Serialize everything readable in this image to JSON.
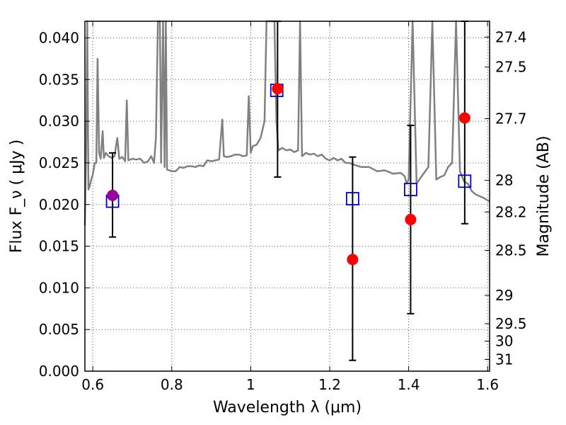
{
  "chart_data": {
    "type": "scatter",
    "xlabel": "Wavelength  λ (μm)",
    "ylabel": "Flux  F_ν  ( μJy )",
    "y2label": "Magnitude (AB)",
    "xlim": [
      0.58,
      1.605
    ],
    "ylim": [
      0.0,
      0.042
    ],
    "grid": true,
    "x_ticks": [
      {
        "value": 0.6,
        "label": "0.6"
      },
      {
        "value": 0.8,
        "label": "0.8"
      },
      {
        "value": 1.0,
        "label": "1"
      },
      {
        "value": 1.2,
        "label": "1.2"
      },
      {
        "value": 1.4,
        "label": "1.4"
      },
      {
        "value": 1.6,
        "label": "1.6"
      }
    ],
    "y_ticks": [
      {
        "value": 0.0,
        "label": "0.000"
      },
      {
        "value": 0.005,
        "label": "0.005"
      },
      {
        "value": 0.01,
        "label": "0.010"
      },
      {
        "value": 0.015,
        "label": "0.015"
      },
      {
        "value": 0.02,
        "label": "0.020"
      },
      {
        "value": 0.025,
        "label": "0.025"
      },
      {
        "value": 0.03,
        "label": "0.030"
      },
      {
        "value": 0.035,
        "label": "0.035"
      },
      {
        "value": 0.04,
        "label": "0.040"
      }
    ],
    "y2_ticks": [
      {
        "flux": 0.0401,
        "label": "27.4"
      },
      {
        "flux": 0.0365,
        "label": "27.5"
      },
      {
        "flux": 0.0303,
        "label": "27.7"
      },
      {
        "flux": 0.0229,
        "label": "28"
      },
      {
        "flux": 0.0191,
        "label": "28.2"
      },
      {
        "flux": 0.0145,
        "label": "28.5"
      },
      {
        "flux": 0.0091,
        "label": "29"
      },
      {
        "flux": 0.0057,
        "label": "29.5"
      },
      {
        "flux": 0.0036,
        "label": "30"
      },
      {
        "flux": 0.0014,
        "label": "31"
      }
    ],
    "series": [
      {
        "kind": "spectrum",
        "color": "#808080",
        "points": [
          [
            0.58,
            0.0175
          ],
          [
            0.583,
            0.026
          ],
          [
            0.586,
            0.042
          ],
          [
            0.589,
            0.0218
          ],
          [
            0.592,
            0.0222
          ],
          [
            0.596,
            0.023
          ],
          [
            0.6,
            0.0236
          ],
          [
            0.605,
            0.025
          ],
          [
            0.609,
            0.025
          ],
          [
            0.612,
            0.0375
          ],
          [
            0.616,
            0.0262
          ],
          [
            0.62,
            0.0255
          ],
          [
            0.625,
            0.0288
          ],
          [
            0.628,
            0.0256
          ],
          [
            0.633,
            0.0262
          ],
          [
            0.64,
            0.0258
          ],
          [
            0.648,
            0.0256
          ],
          [
            0.655,
            0.0258
          ],
          [
            0.662,
            0.028
          ],
          [
            0.667,
            0.0255
          ],
          [
            0.675,
            0.0257
          ],
          [
            0.682,
            0.0252
          ],
          [
            0.686,
            0.0325
          ],
          [
            0.69,
            0.0253
          ],
          [
            0.7,
            0.0255
          ],
          [
            0.71,
            0.0254
          ],
          [
            0.72,
            0.0255
          ],
          [
            0.73,
            0.025
          ],
          [
            0.74,
            0.0252
          ],
          [
            0.748,
            0.0258
          ],
          [
            0.755,
            0.025
          ],
          [
            0.76,
            0.028
          ],
          [
            0.765,
            0.042
          ],
          [
            0.77,
            0.042
          ],
          [
            0.773,
            0.025
          ],
          [
            0.778,
            0.042
          ],
          [
            0.782,
            0.0245
          ],
          [
            0.785,
            0.042
          ],
          [
            0.788,
            0.0242
          ],
          [
            0.8,
            0.024
          ],
          [
            0.81,
            0.024
          ],
          [
            0.82,
            0.0245
          ],
          [
            0.83,
            0.0244
          ],
          [
            0.84,
            0.0246
          ],
          [
            0.85,
            0.0246
          ],
          [
            0.86,
            0.0245
          ],
          [
            0.87,
            0.0247
          ],
          [
            0.88,
            0.0246
          ],
          [
            0.89,
            0.0253
          ],
          [
            0.9,
            0.0252
          ],
          [
            0.91,
            0.0253
          ],
          [
            0.92,
            0.0254
          ],
          [
            0.928,
            0.0302
          ],
          [
            0.932,
            0.0258
          ],
          [
            0.94,
            0.0257
          ],
          [
            0.95,
            0.0258
          ],
          [
            0.96,
            0.026
          ],
          [
            0.97,
            0.026
          ],
          [
            0.98,
            0.0258
          ],
          [
            0.99,
            0.0259
          ],
          [
            0.995,
            0.033
          ],
          [
            1.0,
            0.0262
          ],
          [
            1.005,
            0.027
          ],
          [
            1.015,
            0.0272
          ],
          [
            1.025,
            0.028
          ],
          [
            1.035,
            0.03
          ],
          [
            1.04,
            0.042
          ],
          [
            1.05,
            0.042
          ],
          [
            1.06,
            0.042
          ],
          [
            1.065,
            0.03
          ],
          [
            1.07,
            0.0265
          ],
          [
            1.08,
            0.0268
          ],
          [
            1.09,
            0.0265
          ],
          [
            1.1,
            0.0266
          ],
          [
            1.11,
            0.0263
          ],
          [
            1.12,
            0.0265
          ],
          [
            1.125,
            0.042
          ],
          [
            1.13,
            0.0258
          ],
          [
            1.14,
            0.0262
          ],
          [
            1.15,
            0.026
          ],
          [
            1.16,
            0.0261
          ],
          [
            1.17,
            0.0258
          ],
          [
            1.18,
            0.026
          ],
          [
            1.19,
            0.0255
          ],
          [
            1.2,
            0.0253
          ],
          [
            1.21,
            0.0256
          ],
          [
            1.22,
            0.0253
          ],
          [
            1.23,
            0.0255
          ],
          [
            1.24,
            0.025
          ],
          [
            1.25,
            0.025
          ],
          [
            1.26,
            0.0248
          ],
          [
            1.28,
            0.0245
          ],
          [
            1.3,
            0.0245
          ],
          [
            1.32,
            0.024
          ],
          [
            1.34,
            0.0241
          ],
          [
            1.36,
            0.0237
          ],
          [
            1.38,
            0.0238
          ],
          [
            1.39,
            0.0234
          ],
          [
            1.395,
            0.0225
          ],
          [
            1.4,
            0.023
          ],
          [
            1.41,
            0.042
          ],
          [
            1.42,
            0.0225
          ],
          [
            1.43,
            0.0232
          ],
          [
            1.45,
            0.0245
          ],
          [
            1.46,
            0.042
          ],
          [
            1.47,
            0.023
          ],
          [
            1.48,
            0.0233
          ],
          [
            1.49,
            0.0235
          ],
          [
            1.5,
            0.0245
          ],
          [
            1.51,
            0.025
          ],
          [
            1.52,
            0.042
          ],
          [
            1.53,
            0.024
          ],
          [
            1.54,
            0.0228
          ],
          [
            1.55,
            0.0225
          ],
          [
            1.56,
            0.0216
          ],
          [
            1.57,
            0.0212
          ],
          [
            1.58,
            0.021
          ],
          [
            1.59,
            0.0208
          ],
          [
            1.6,
            0.0205
          ],
          [
            1.605,
            0.0204
          ]
        ]
      },
      {
        "kind": "observed",
        "color": "#ff0000",
        "points": [
          {
            "x": 1.068,
            "y": 0.0339,
            "yerr_low": 0.0233,
            "yerr_high": 0.042
          },
          {
            "x": 1.258,
            "y": 0.0134,
            "yerr_low": 0.0013,
            "yerr_high": 0.0257
          },
          {
            "x": 1.405,
            "y": 0.0182,
            "yerr_low": 0.0069,
            "yerr_high": 0.0295
          },
          {
            "x": 1.542,
            "y": 0.0304,
            "yerr_low": 0.0177,
            "yerr_high": 0.042
          }
        ]
      },
      {
        "kind": "observed-highlight",
        "color": "#9a009a",
        "points": [
          {
            "x": 0.65,
            "y": 0.0211,
            "yerr_low": 0.0161,
            "yerr_high": 0.0262
          }
        ]
      },
      {
        "kind": "model-synthetic",
        "color": "#0000cc",
        "points": [
          {
            "x": 0.65,
            "y": 0.0204
          },
          {
            "x": 1.066,
            "y": 0.0337
          },
          {
            "x": 1.258,
            "y": 0.0207
          },
          {
            "x": 1.405,
            "y": 0.0218
          },
          {
            "x": 1.542,
            "y": 0.0228
          }
        ]
      }
    ]
  }
}
